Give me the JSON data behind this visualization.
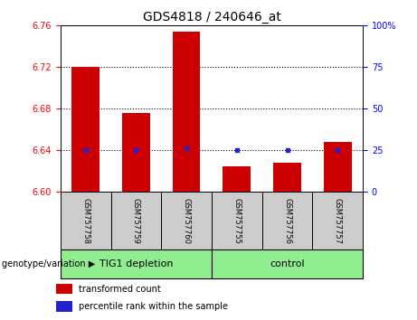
{
  "title": "GDS4818 / 240646_at",
  "samples": [
    "GSM757758",
    "GSM757759",
    "GSM757760",
    "GSM757755",
    "GSM757756",
    "GSM757757"
  ],
  "bar_values": [
    6.72,
    6.676,
    6.754,
    6.625,
    6.628,
    6.648
  ],
  "percentile_values": [
    6.64,
    6.64,
    6.642,
    6.64,
    6.64,
    6.64
  ],
  "y_min": 6.6,
  "y_max": 6.76,
  "y_ticks": [
    6.6,
    6.64,
    6.68,
    6.72,
    6.76
  ],
  "y_ticks_right": [
    0,
    25,
    50,
    75,
    100
  ],
  "bar_color": "#cc0000",
  "dot_color": "#2222cc",
  "bar_width": 0.55,
  "group_bg_color": "#90ee90",
  "sample_bg_color": "#cccccc",
  "legend_red_label": "transformed count",
  "legend_blue_label": "percentile rank within the sample",
  "genotype_label": "genotype/variation",
  "grid_ticks": [
    6.64,
    6.68,
    6.72
  ],
  "groups_info": [
    [
      0,
      2,
      "TIG1 depletion"
    ],
    [
      3,
      5,
      "control"
    ]
  ],
  "title_fontsize": 10,
  "tick_fontsize": 7,
  "sample_fontsize": 6,
  "group_fontsize": 8
}
